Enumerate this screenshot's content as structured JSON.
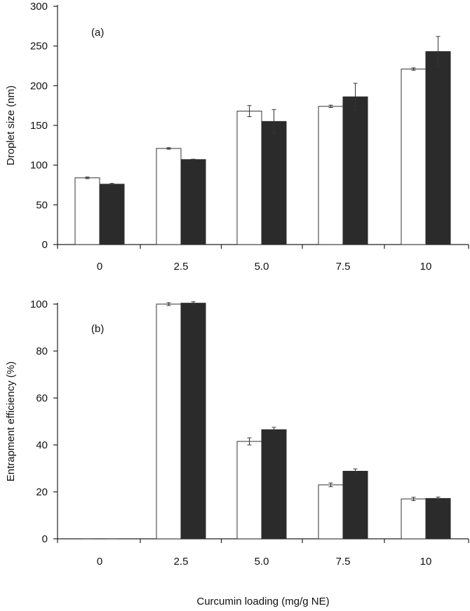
{
  "chart_data": [
    {
      "type": "bar",
      "panel_label": "(a)",
      "title": "",
      "xlabel": "",
      "ylabel": "Droplet size (nm)",
      "ylim": [
        0,
        300
      ],
      "yticks": [
        0,
        50,
        100,
        150,
        200,
        250,
        300
      ],
      "categories": [
        "0",
        "2.5",
        "5.0",
        "7.5",
        "10"
      ],
      "series": [
        {
          "name": "open",
          "style": "open",
          "values": [
            84,
            121,
            168,
            174,
            221
          ],
          "errors": [
            1,
            1,
            7,
            1.5,
            1.5
          ]
        },
        {
          "name": "filled",
          "style": "filled",
          "values": [
            76,
            107,
            155,
            186,
            243
          ],
          "errors": [
            1,
            0.5,
            15,
            17,
            19
          ]
        }
      ]
    },
    {
      "type": "bar",
      "panel_label": "(b)",
      "title": "",
      "xlabel": "Curcumin loading (mg/g NE)",
      "ylabel": "Entrapment efficiency (%)",
      "ylim": [
        0,
        100
      ],
      "yticks": [
        0,
        20,
        40,
        60,
        80,
        100
      ],
      "categories": [
        "0",
        "2.5",
        "5.0",
        "7.5",
        "10"
      ],
      "series": [
        {
          "name": "open",
          "style": "open",
          "values": [
            0,
            100,
            41.5,
            23,
            17
          ],
          "errors": [
            0,
            0.6,
            1.5,
            0.8,
            0.7
          ]
        },
        {
          "name": "filled",
          "style": "filled",
          "values": [
            0,
            100.4,
            46.5,
            28.8,
            17.2
          ],
          "errors": [
            0,
            0.6,
            1.0,
            1.0,
            0.6
          ]
        }
      ]
    }
  ],
  "colors": {
    "open_fill": "#ffffff",
    "filled_fill": "#2b2b2b",
    "axis": "#222222"
  }
}
